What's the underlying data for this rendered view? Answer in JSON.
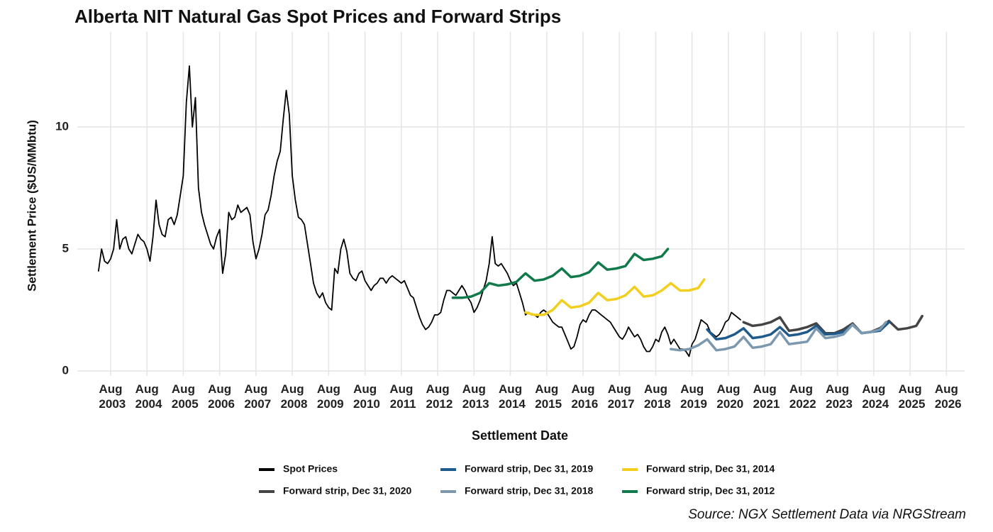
{
  "chart_data": {
    "type": "line",
    "title": "Alberta NIT Natural Gas Spot Prices and Forward Strips",
    "x_label": "Settlement Date",
    "y_label": "Settlement Price ($US/MMbtu)",
    "caption": "Source: NGX Settlement Data via NRGStream",
    "xlim": [
      "2002-09",
      "2027-02"
    ],
    "ylim": [
      -0.2,
      13.9
    ],
    "yticks": [
      0,
      5,
      10
    ],
    "xticks": [
      {
        "value": "2003-08",
        "label": "Aug 2003"
      },
      {
        "value": "2004-08",
        "label": "Aug 2004"
      },
      {
        "value": "2005-08",
        "label": "Aug 2005"
      },
      {
        "value": "2006-08",
        "label": "Aug 2006"
      },
      {
        "value": "2007-08",
        "label": "Aug 2007"
      },
      {
        "value": "2008-08",
        "label": "Aug 2008"
      },
      {
        "value": "2009-08",
        "label": "Aug 2009"
      },
      {
        "value": "2010-08",
        "label": "Aug 2010"
      },
      {
        "value": "2011-08",
        "label": "Aug 2011"
      },
      {
        "value": "2012-08",
        "label": "Aug 2012"
      },
      {
        "value": "2013-08",
        "label": "Aug 2013"
      },
      {
        "value": "2014-08",
        "label": "Aug 2014"
      },
      {
        "value": "2015-08",
        "label": "Aug 2015"
      },
      {
        "value": "2016-08",
        "label": "Aug 2016"
      },
      {
        "value": "2017-08",
        "label": "Aug 2017"
      },
      {
        "value": "2018-08",
        "label": "Aug 2018"
      },
      {
        "value": "2019-08",
        "label": "Aug 2019"
      },
      {
        "value": "2020-08",
        "label": "Aug 2020"
      },
      {
        "value": "2021-08",
        "label": "Aug 2021"
      },
      {
        "value": "2022-08",
        "label": "Aug 2022"
      },
      {
        "value": "2023-08",
        "label": "Aug 2023"
      },
      {
        "value": "2024-08",
        "label": "Aug 2024"
      },
      {
        "value": "2025-08",
        "label": "Aug 2025"
      },
      {
        "value": "2026-08",
        "label": "Aug 2026"
      }
    ],
    "grid": true,
    "legend": "bottom",
    "series": [
      {
        "name": "Spot Prices",
        "color": "#000000",
        "x": [
          "2003-04",
          "2003-05",
          "2003-06",
          "2003-07",
          "2003-08",
          "2003-09",
          "2003-10",
          "2003-11",
          "2003-12",
          "2004-01",
          "2004-02",
          "2004-03",
          "2004-04",
          "2004-05",
          "2004-06",
          "2004-07",
          "2004-08",
          "2004-09",
          "2004-10",
          "2004-11",
          "2004-12",
          "2005-01",
          "2005-02",
          "2005-03",
          "2005-04",
          "2005-05",
          "2005-06",
          "2005-07",
          "2005-08",
          "2005-09",
          "2005-10",
          "2005-11",
          "2005-12",
          "2006-01",
          "2006-02",
          "2006-03",
          "2006-04",
          "2006-05",
          "2006-06",
          "2006-07",
          "2006-08",
          "2006-09",
          "2006-10",
          "2006-11",
          "2006-12",
          "2007-01",
          "2007-02",
          "2007-03",
          "2007-04",
          "2007-05",
          "2007-06",
          "2007-07",
          "2007-08",
          "2007-09",
          "2007-10",
          "2007-11",
          "2007-12",
          "2008-01",
          "2008-02",
          "2008-03",
          "2008-04",
          "2008-05",
          "2008-06",
          "2008-07",
          "2008-08",
          "2008-09",
          "2008-10",
          "2008-11",
          "2008-12",
          "2009-01",
          "2009-02",
          "2009-03",
          "2009-04",
          "2009-05",
          "2009-06",
          "2009-07",
          "2009-08",
          "2009-09",
          "2009-10",
          "2009-11",
          "2009-12",
          "2010-01",
          "2010-02",
          "2010-03",
          "2010-04",
          "2010-05",
          "2010-06",
          "2010-07",
          "2010-08",
          "2010-09",
          "2010-10",
          "2010-11",
          "2010-12",
          "2011-01",
          "2011-02",
          "2011-03",
          "2011-04",
          "2011-05",
          "2011-06",
          "2011-07",
          "2011-08",
          "2011-09",
          "2011-10",
          "2011-11",
          "2011-12",
          "2012-01",
          "2012-02",
          "2012-03",
          "2012-04",
          "2012-05",
          "2012-06",
          "2012-07",
          "2012-08",
          "2012-09",
          "2012-10",
          "2012-11",
          "2012-12",
          "2013-01",
          "2013-02",
          "2013-03",
          "2013-04",
          "2013-05",
          "2013-06",
          "2013-07",
          "2013-08",
          "2013-09",
          "2013-10",
          "2013-11",
          "2013-12",
          "2014-01",
          "2014-02",
          "2014-03",
          "2014-04",
          "2014-05",
          "2014-06",
          "2014-07",
          "2014-08",
          "2014-09",
          "2014-10",
          "2014-11",
          "2014-12",
          "2015-01",
          "2015-02",
          "2015-03",
          "2015-04",
          "2015-05",
          "2015-06",
          "2015-07",
          "2015-08",
          "2015-09",
          "2015-10",
          "2015-11",
          "2015-12",
          "2016-01",
          "2016-02",
          "2016-03",
          "2016-04",
          "2016-05",
          "2016-06",
          "2016-07",
          "2016-08",
          "2016-09",
          "2016-10",
          "2016-11",
          "2016-12",
          "2017-01",
          "2017-02",
          "2017-03",
          "2017-04",
          "2017-05",
          "2017-06",
          "2017-07",
          "2017-08",
          "2017-09",
          "2017-10",
          "2017-11",
          "2017-12",
          "2018-01",
          "2018-02",
          "2018-03",
          "2018-04",
          "2018-05",
          "2018-06",
          "2018-07",
          "2018-08",
          "2018-09",
          "2018-10",
          "2018-11",
          "2018-12",
          "2019-01",
          "2019-02",
          "2019-03",
          "2019-04",
          "2019-05",
          "2019-06",
          "2019-07",
          "2019-08",
          "2019-09",
          "2019-10",
          "2019-11",
          "2019-12",
          "2020-01",
          "2020-02",
          "2020-03",
          "2020-04",
          "2020-05",
          "2020-06",
          "2020-07",
          "2020-08",
          "2020-09",
          "2020-10",
          "2020-11",
          "2020-12"
        ],
        "values": [
          4.1,
          5.0,
          4.5,
          4.4,
          4.6,
          5.0,
          6.2,
          5.0,
          5.4,
          5.5,
          5.0,
          4.8,
          5.2,
          5.6,
          5.4,
          5.3,
          5.0,
          4.5,
          5.5,
          7.0,
          6.0,
          5.6,
          5.5,
          6.2,
          6.3,
          6.0,
          6.4,
          7.2,
          8.0,
          11.0,
          12.5,
          10.0,
          11.2,
          7.5,
          6.5,
          6.0,
          5.6,
          5.2,
          5.0,
          5.5,
          5.8,
          4.0,
          4.8,
          6.5,
          6.2,
          6.3,
          6.8,
          6.5,
          6.6,
          6.7,
          6.4,
          5.3,
          4.6,
          5.0,
          5.6,
          6.4,
          6.6,
          7.2,
          8.0,
          8.6,
          9.0,
          10.3,
          11.5,
          10.5,
          8.0,
          7.0,
          6.3,
          6.2,
          6.0,
          5.2,
          4.4,
          3.6,
          3.2,
          3.0,
          3.2,
          2.8,
          2.6,
          2.5,
          4.2,
          4.0,
          5.0,
          5.4,
          4.9,
          4.0,
          3.8,
          3.7,
          4.0,
          4.1,
          3.7,
          3.5,
          3.3,
          3.5,
          3.6,
          3.8,
          3.8,
          3.6,
          3.8,
          3.9,
          3.8,
          3.7,
          3.6,
          3.7,
          3.4,
          3.1,
          3.0,
          2.6,
          2.2,
          1.9,
          1.7,
          1.8,
          2.0,
          2.3,
          2.3,
          2.4,
          2.9,
          3.3,
          3.3,
          3.2,
          3.1,
          3.3,
          3.5,
          3.3,
          3.0,
          2.8,
          2.4,
          2.6,
          2.9,
          3.3,
          3.7,
          4.4,
          5.5,
          4.4,
          4.3,
          4.4,
          4.2,
          4.0,
          3.7,
          3.5,
          3.6,
          3.2,
          2.8,
          2.3,
          2.4,
          2.3,
          2.3,
          2.2,
          2.4,
          2.5,
          2.4,
          2.2,
          2.0,
          1.9,
          1.8,
          1.8,
          1.5,
          1.2,
          0.9,
          1.0,
          1.4,
          1.9,
          2.1,
          2.0,
          2.3,
          2.5,
          2.5,
          2.4,
          2.3,
          2.2,
          2.1,
          2.0,
          1.8,
          1.6,
          1.4,
          1.3,
          1.5,
          1.8,
          1.6,
          1.4,
          1.5,
          1.3,
          1.0,
          0.8,
          0.8,
          1.0,
          1.3,
          1.2,
          1.6,
          1.8,
          1.5,
          1.1,
          1.3,
          1.1,
          0.9,
          0.9,
          0.8,
          0.6,
          1.1,
          1.3,
          1.7,
          2.1,
          2.0,
          1.9,
          1.6,
          1.5,
          1.4,
          1.5,
          1.7,
          2.0,
          2.1,
          2.4,
          2.3,
          2.2,
          2.1
        ]
      },
      {
        "name": "Forward strip, Dec 31, 2020",
        "color": "#444444",
        "x": [
          "2021-01",
          "2021-04",
          "2021-07",
          "2021-10",
          "2022-01",
          "2022-04",
          "2022-07",
          "2022-10",
          "2023-01",
          "2023-04",
          "2023-07",
          "2023-10",
          "2024-01",
          "2024-04",
          "2024-07",
          "2024-10",
          "2025-01",
          "2025-04",
          "2025-07",
          "2025-10",
          "2025-12"
        ],
        "values": [
          2.0,
          1.85,
          1.9,
          2.0,
          2.2,
          1.65,
          1.7,
          1.8,
          1.95,
          1.55,
          1.55,
          1.7,
          1.95,
          1.55,
          1.6,
          1.75,
          2.05,
          1.7,
          1.75,
          1.85,
          2.25
        ]
      },
      {
        "name": "Forward strip, Dec 31, 2019",
        "color": "#1f5a8c",
        "x": [
          "2020-01",
          "2020-04",
          "2020-07",
          "2020-10",
          "2021-01",
          "2021-04",
          "2021-07",
          "2021-10",
          "2022-01",
          "2022-04",
          "2022-07",
          "2022-10",
          "2023-01",
          "2023-04",
          "2023-07",
          "2023-10",
          "2024-01",
          "2024-04",
          "2024-07",
          "2024-10",
          "2025-01"
        ],
        "values": [
          1.7,
          1.3,
          1.35,
          1.5,
          1.75,
          1.35,
          1.4,
          1.5,
          1.8,
          1.45,
          1.5,
          1.6,
          1.85,
          1.5,
          1.52,
          1.6,
          1.9,
          1.55,
          1.6,
          1.65,
          2.0
        ]
      },
      {
        "name": "Forward strip, Dec 31, 2018",
        "color": "#7b98ae",
        "x": [
          "2019-01",
          "2019-04",
          "2019-07",
          "2019-10",
          "2020-01",
          "2020-04",
          "2020-07",
          "2020-10",
          "2021-01",
          "2021-04",
          "2021-07",
          "2021-10",
          "2022-01",
          "2022-04",
          "2022-07",
          "2022-10",
          "2023-01",
          "2023-04",
          "2023-07",
          "2023-10",
          "2024-01",
          "2024-04",
          "2024-07",
          "2024-10",
          "2024-12"
        ],
        "values": [
          0.9,
          0.85,
          0.9,
          1.05,
          1.3,
          0.85,
          0.9,
          1.0,
          1.4,
          0.95,
          1.0,
          1.1,
          1.6,
          1.1,
          1.15,
          1.2,
          1.75,
          1.35,
          1.4,
          1.5,
          1.9,
          1.55,
          1.6,
          1.7,
          2.0
        ]
      },
      {
        "name": "Forward strip, Dec 31, 2014",
        "color": "#f2cf1f",
        "x": [
          "2015-01",
          "2015-04",
          "2015-07",
          "2015-10",
          "2016-01",
          "2016-04",
          "2016-07",
          "2016-10",
          "2017-01",
          "2017-04",
          "2017-07",
          "2017-10",
          "2018-01",
          "2018-04",
          "2018-07",
          "2018-10",
          "2019-01",
          "2019-04",
          "2019-07",
          "2019-10",
          "2019-12"
        ],
        "values": [
          2.4,
          2.3,
          2.3,
          2.5,
          2.9,
          2.6,
          2.65,
          2.8,
          3.2,
          2.9,
          2.95,
          3.1,
          3.45,
          3.05,
          3.1,
          3.3,
          3.6,
          3.3,
          3.3,
          3.4,
          3.75
        ]
      },
      {
        "name": "Forward strip, Dec 31, 2012",
        "color": "#117a4a",
        "x": [
          "2013-01",
          "2013-04",
          "2013-07",
          "2013-10",
          "2014-01",
          "2014-04",
          "2014-07",
          "2014-10",
          "2015-01",
          "2015-04",
          "2015-07",
          "2015-10",
          "2016-01",
          "2016-04",
          "2016-07",
          "2016-10",
          "2017-01",
          "2017-04",
          "2017-07",
          "2017-10",
          "2018-01",
          "2018-04",
          "2018-07",
          "2018-10",
          "2018-12"
        ],
        "values": [
          3.0,
          3.0,
          3.05,
          3.2,
          3.6,
          3.5,
          3.55,
          3.65,
          4.0,
          3.7,
          3.75,
          3.9,
          4.2,
          3.85,
          3.9,
          4.05,
          4.45,
          4.15,
          4.2,
          4.3,
          4.8,
          4.55,
          4.6,
          4.7,
          5.0
        ]
      }
    ]
  }
}
